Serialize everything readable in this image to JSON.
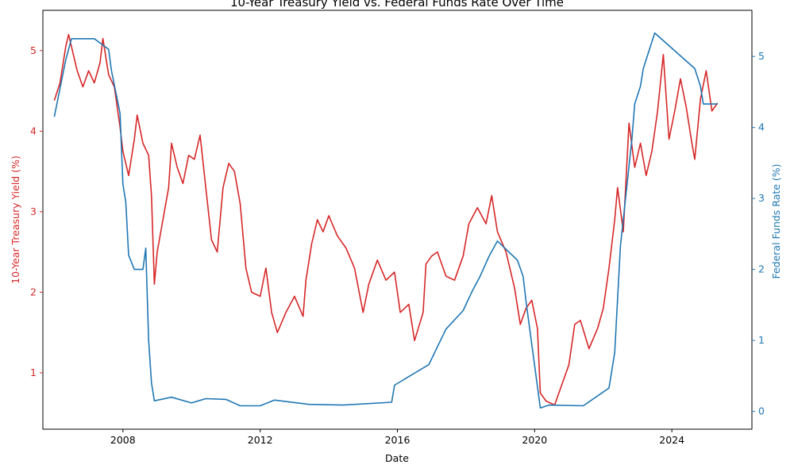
{
  "chart_data": {
    "type": "line",
    "title": "10-Year Treasury Yield vs. Federal Funds Rate Over Time",
    "xlabel": "Date",
    "ylabel_left": "10-Year Treasury Yield (%)",
    "ylabel_right": "Federal Funds Rate (%)",
    "x_ticks": [
      "2008",
      "2012",
      "2016",
      "2020",
      "2024"
    ],
    "y_left_ticks": [
      "1",
      "2",
      "3",
      "4",
      "5"
    ],
    "y_right_ticks": [
      "0",
      "1",
      "2",
      "3",
      "4",
      "5"
    ],
    "xlim": [
      "2005-09",
      "2026-05"
    ],
    "ylim_left": [
      0.3,
      5.5
    ],
    "ylim_right": [
      -0.25,
      5.65
    ],
    "grid": false,
    "colors": {
      "left": "#d62728",
      "right": "#1f77b4"
    },
    "series": [
      {
        "axis": "left",
        "values": [
          [
            "2006-01",
            4.38
          ],
          [
            "2006-03",
            4.6
          ],
          [
            "2006-05",
            5.05
          ],
          [
            "2006-06",
            5.2
          ],
          [
            "2006-07",
            5.05
          ],
          [
            "2006-09",
            4.75
          ],
          [
            "2006-11",
            4.55
          ],
          [
            "2007-01",
            4.75
          ],
          [
            "2007-03",
            4.6
          ],
          [
            "2007-05",
            4.85
          ],
          [
            "2007-06",
            5.15
          ],
          [
            "2007-08",
            4.7
          ],
          [
            "2007-10",
            4.55
          ],
          [
            "2007-12",
            4.05
          ],
          [
            "2008-01",
            3.75
          ],
          [
            "2008-03",
            3.45
          ],
          [
            "2008-05",
            3.9
          ],
          [
            "2008-06",
            4.2
          ],
          [
            "2008-08",
            3.85
          ],
          [
            "2008-10",
            3.7
          ],
          [
            "2008-11",
            3.2
          ],
          [
            "2008-12",
            2.1
          ],
          [
            "2009-01",
            2.5
          ],
          [
            "2009-03",
            2.9
          ],
          [
            "2009-05",
            3.3
          ],
          [
            "2009-06",
            3.85
          ],
          [
            "2009-08",
            3.55
          ],
          [
            "2009-10",
            3.35
          ],
          [
            "2009-12",
            3.7
          ],
          [
            "2010-02",
            3.65
          ],
          [
            "2010-04",
            3.95
          ],
          [
            "2010-06",
            3.3
          ],
          [
            "2010-08",
            2.65
          ],
          [
            "2010-10",
            2.5
          ],
          [
            "2010-12",
            3.3
          ],
          [
            "2011-02",
            3.6
          ],
          [
            "2011-04",
            3.5
          ],
          [
            "2011-06",
            3.1
          ],
          [
            "2011-08",
            2.3
          ],
          [
            "2011-10",
            2.0
          ],
          [
            "2012-01",
            1.95
          ],
          [
            "2012-03",
            2.3
          ],
          [
            "2012-05",
            1.75
          ],
          [
            "2012-07",
            1.5
          ],
          [
            "2012-10",
            1.75
          ],
          [
            "2013-01",
            1.95
          ],
          [
            "2013-04",
            1.7
          ],
          [
            "2013-05",
            2.15
          ],
          [
            "2013-07",
            2.6
          ],
          [
            "2013-09",
            2.9
          ],
          [
            "2013-11",
            2.75
          ],
          [
            "2014-01",
            2.95
          ],
          [
            "2014-04",
            2.7
          ],
          [
            "2014-07",
            2.55
          ],
          [
            "2014-10",
            2.3
          ],
          [
            "2015-01",
            1.75
          ],
          [
            "2015-03",
            2.1
          ],
          [
            "2015-06",
            2.4
          ],
          [
            "2015-09",
            2.15
          ],
          [
            "2015-12",
            2.25
          ],
          [
            "2016-02",
            1.75
          ],
          [
            "2016-05",
            1.85
          ],
          [
            "2016-07",
            1.4
          ],
          [
            "2016-10",
            1.75
          ],
          [
            "2016-11",
            2.35
          ],
          [
            "2017-01",
            2.45
          ],
          [
            "2017-03",
            2.5
          ],
          [
            "2017-06",
            2.2
          ],
          [
            "2017-09",
            2.15
          ],
          [
            "2017-12",
            2.45
          ],
          [
            "2018-02",
            2.85
          ],
          [
            "2018-05",
            3.05
          ],
          [
            "2018-08",
            2.85
          ],
          [
            "2018-10",
            3.2
          ],
          [
            "2018-12",
            2.75
          ],
          [
            "2019-03",
            2.5
          ],
          [
            "2019-06",
            2.05
          ],
          [
            "2019-08",
            1.6
          ],
          [
            "2019-10",
            1.8
          ],
          [
            "2019-12",
            1.9
          ],
          [
            "2020-02",
            1.55
          ],
          [
            "2020-03",
            0.75
          ],
          [
            "2020-05",
            0.65
          ],
          [
            "2020-08",
            0.6
          ],
          [
            "2020-11",
            0.9
          ],
          [
            "2021-01",
            1.1
          ],
          [
            "2021-03",
            1.6
          ],
          [
            "2021-05",
            1.65
          ],
          [
            "2021-08",
            1.3
          ],
          [
            "2021-11",
            1.55
          ],
          [
            "2022-01",
            1.8
          ],
          [
            "2022-03",
            2.3
          ],
          [
            "2022-05",
            2.9
          ],
          [
            "2022-06",
            3.3
          ],
          [
            "2022-08",
            2.75
          ],
          [
            "2022-10",
            4.1
          ],
          [
            "2022-12",
            3.55
          ],
          [
            "2023-02",
            3.85
          ],
          [
            "2023-04",
            3.45
          ],
          [
            "2023-06",
            3.75
          ],
          [
            "2023-08",
            4.25
          ],
          [
            "2023-10",
            4.95
          ],
          [
            "2023-12",
            3.9
          ],
          [
            "2024-02",
            4.25
          ],
          [
            "2024-04",
            4.65
          ],
          [
            "2024-06",
            4.3
          ],
          [
            "2024-08",
            3.85
          ],
          [
            "2024-09",
            3.65
          ],
          [
            "2024-11",
            4.4
          ],
          [
            "2025-01",
            4.75
          ],
          [
            "2025-03",
            4.25
          ],
          [
            "2025-05",
            4.35
          ]
        ]
      },
      {
        "axis": "right",
        "values": [
          [
            "2006-01",
            4.15
          ],
          [
            "2006-03",
            4.55
          ],
          [
            "2006-05",
            4.95
          ],
          [
            "2006-07",
            5.25
          ],
          [
            "2007-03",
            5.25
          ],
          [
            "2007-08",
            5.1
          ],
          [
            "2007-09",
            4.8
          ],
          [
            "2007-10",
            4.6
          ],
          [
            "2007-12",
            4.2
          ],
          [
            "2008-01",
            3.2
          ],
          [
            "2008-02",
            2.95
          ],
          [
            "2008-03",
            2.2
          ],
          [
            "2008-05",
            2.0
          ],
          [
            "2008-08",
            2.0
          ],
          [
            "2008-09",
            2.3
          ],
          [
            "2008-10",
            1.0
          ],
          [
            "2008-11",
            0.4
          ],
          [
            "2008-12",
            0.15
          ],
          [
            "2009-06",
            0.2
          ],
          [
            "2010-01",
            0.12
          ],
          [
            "2010-06",
            0.18
          ],
          [
            "2011-01",
            0.17
          ],
          [
            "2011-06",
            0.08
          ],
          [
            "2012-01",
            0.08
          ],
          [
            "2012-06",
            0.16
          ],
          [
            "2013-06",
            0.1
          ],
          [
            "2014-06",
            0.09
          ],
          [
            "2015-11",
            0.13
          ],
          [
            "2015-12",
            0.37
          ],
          [
            "2016-12",
            0.66
          ],
          [
            "2017-03",
            0.91
          ],
          [
            "2017-06",
            1.16
          ],
          [
            "2017-12",
            1.42
          ],
          [
            "2018-03",
            1.68
          ],
          [
            "2018-06",
            1.91
          ],
          [
            "2018-09",
            2.18
          ],
          [
            "2018-12",
            2.4
          ],
          [
            "2019-07",
            2.13
          ],
          [
            "2019-09",
            1.9
          ],
          [
            "2019-10",
            1.55
          ],
          [
            "2020-03",
            0.05
          ],
          [
            "2020-06",
            0.09
          ],
          [
            "2021-06",
            0.08
          ],
          [
            "2022-03",
            0.33
          ],
          [
            "2022-05",
            0.83
          ],
          [
            "2022-06",
            1.58
          ],
          [
            "2022-07",
            2.33
          ],
          [
            "2022-09",
            3.08
          ],
          [
            "2022-11",
            3.83
          ],
          [
            "2022-12",
            4.33
          ],
          [
            "2023-02",
            4.58
          ],
          [
            "2023-03",
            4.83
          ],
          [
            "2023-05",
            5.08
          ],
          [
            "2023-07",
            5.33
          ],
          [
            "2024-09",
            4.83
          ],
          [
            "2024-11",
            4.58
          ],
          [
            "2024-12",
            4.33
          ],
          [
            "2025-05",
            4.33
          ]
        ]
      }
    ]
  }
}
